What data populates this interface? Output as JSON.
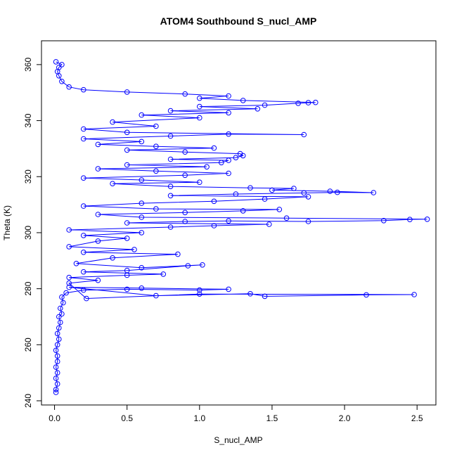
{
  "chart_data": {
    "type": "scatter",
    "title": "ATOM4 Southbound S_nucl_AMP",
    "xlabel": "S_nucl_AMP",
    "ylabel": "Theta (K)",
    "xlim": [
      -0.09,
      2.63
    ],
    "ylim": [
      238.5,
      368.5
    ],
    "xticks": [
      "0.0",
      "0.5",
      "1.0",
      "1.5",
      "2.0",
      "2.5"
    ],
    "yticks": [
      "240",
      "260",
      "280",
      "300",
      "320",
      "340",
      "360"
    ],
    "grid": false,
    "legend": "none",
    "marker": "open-circle",
    "connect_points": true,
    "series_color": "#0000ff",
    "series": [
      {
        "points": [
          [
            0.01,
            243
          ],
          [
            0.01,
            244
          ],
          [
            0.02,
            246
          ],
          [
            0.01,
            248
          ],
          [
            0.02,
            250
          ],
          [
            0.01,
            252
          ],
          [
            0.02,
            254
          ],
          [
            0.02,
            256
          ],
          [
            0.01,
            258
          ],
          [
            0.02,
            260
          ],
          [
            0.03,
            262
          ],
          [
            0.02,
            264
          ],
          [
            0.03,
            266
          ],
          [
            0.04,
            268
          ],
          [
            0.03,
            270
          ],
          [
            0.05,
            271
          ],
          [
            0.04,
            273
          ],
          [
            0.06,
            275
          ],
          [
            0.05,
            277
          ],
          [
            0.08,
            278.5
          ],
          [
            0.2,
            279.5
          ],
          [
            0.5,
            279.8
          ],
          [
            1.0,
            279.5
          ],
          [
            1.2,
            279.8
          ],
          [
            0.6,
            280.2
          ],
          [
            0.1,
            280.5
          ],
          [
            0.7,
            277.5
          ],
          [
            1.35,
            278.2
          ],
          [
            1.45,
            277.3
          ],
          [
            2.15,
            277.8
          ],
          [
            2.48,
            277.9
          ],
          [
            1.0,
            278.1
          ],
          [
            0.22,
            276.5
          ],
          [
            0.1,
            282
          ],
          [
            0.3,
            283
          ],
          [
            0.1,
            284
          ],
          [
            0.5,
            284.8
          ],
          [
            0.75,
            285.2
          ],
          [
            0.2,
            286
          ],
          [
            0.5,
            286.5
          ],
          [
            0.92,
            288.2
          ],
          [
            1.02,
            288.5
          ],
          [
            0.6,
            287.5
          ],
          [
            0.15,
            289
          ],
          [
            0.4,
            291
          ],
          [
            0.85,
            292.3
          ],
          [
            0.2,
            293
          ],
          [
            0.55,
            294
          ],
          [
            0.1,
            295
          ],
          [
            0.3,
            297
          ],
          [
            0.5,
            298
          ],
          [
            0.2,
            299
          ],
          [
            0.6,
            300
          ],
          [
            0.1,
            301
          ],
          [
            0.8,
            302
          ],
          [
            1.1,
            302.5
          ],
          [
            1.48,
            303
          ],
          [
            0.5,
            303.5
          ],
          [
            0.9,
            304
          ],
          [
            1.2,
            304.2
          ],
          [
            1.75,
            304
          ],
          [
            2.27,
            304.3
          ],
          [
            2.45,
            304.7
          ],
          [
            2.57,
            304.8
          ],
          [
            1.6,
            305.2
          ],
          [
            0.6,
            305.5
          ],
          [
            0.3,
            306.5
          ],
          [
            0.9,
            307.2
          ],
          [
            1.3,
            307.8
          ],
          [
            1.55,
            308.3
          ],
          [
            0.7,
            308.5
          ],
          [
            0.2,
            309.5
          ],
          [
            0.6,
            310.5
          ],
          [
            1.1,
            311.2
          ],
          [
            1.45,
            312
          ],
          [
            1.75,
            312.8
          ],
          [
            0.8,
            313.2
          ],
          [
            1.25,
            313.8
          ],
          [
            1.72,
            314.2
          ],
          [
            1.95,
            314.4
          ],
          [
            2.2,
            314.3
          ],
          [
            1.9,
            314.8
          ],
          [
            1.5,
            315.2
          ],
          [
            1.65,
            315.8
          ],
          [
            1.35,
            316
          ],
          [
            0.8,
            316.5
          ],
          [
            0.4,
            317.5
          ],
          [
            1.0,
            318
          ],
          [
            0.6,
            318.8
          ],
          [
            0.2,
            319.5
          ],
          [
            0.9,
            320.5
          ],
          [
            1.2,
            321.2
          ],
          [
            0.7,
            322
          ],
          [
            0.3,
            322.8
          ],
          [
            1.05,
            323.5
          ],
          [
            0.5,
            324.2
          ],
          [
            1.15,
            325
          ],
          [
            1.2,
            325.8
          ],
          [
            0.8,
            326.2
          ],
          [
            1.25,
            326.8
          ],
          [
            1.3,
            327.5
          ],
          [
            1.28,
            328.2
          ],
          [
            0.9,
            328.8
          ],
          [
            0.5,
            329.5
          ],
          [
            1.1,
            330.2
          ],
          [
            0.7,
            330.8
          ],
          [
            0.3,
            331.5
          ],
          [
            0.6,
            332.5
          ],
          [
            0.2,
            333.5
          ],
          [
            0.8,
            334.5
          ],
          [
            1.2,
            335.2
          ],
          [
            1.72,
            335
          ],
          [
            0.5,
            335.8
          ],
          [
            0.2,
            337
          ],
          [
            0.7,
            338
          ],
          [
            0.4,
            339.5
          ],
          [
            1.0,
            341
          ],
          [
            0.6,
            342
          ],
          [
            1.2,
            342.8
          ],
          [
            0.8,
            343.5
          ],
          [
            1.4,
            344.2
          ],
          [
            1.0,
            345
          ],
          [
            1.45,
            345.5
          ],
          [
            1.68,
            346.2
          ],
          [
            1.75,
            346.4
          ],
          [
            1.8,
            346.5
          ],
          [
            1.3,
            347.2
          ],
          [
            1.0,
            348
          ],
          [
            1.2,
            348.8
          ],
          [
            0.9,
            349.5
          ],
          [
            0.5,
            350.2
          ],
          [
            0.2,
            351
          ],
          [
            0.1,
            352
          ],
          [
            0.05,
            354
          ],
          [
            0.03,
            356
          ],
          [
            0.02,
            357.5
          ],
          [
            0.03,
            359
          ],
          [
            0.05,
            360
          ],
          [
            0.01,
            361
          ]
        ]
      }
    ]
  }
}
